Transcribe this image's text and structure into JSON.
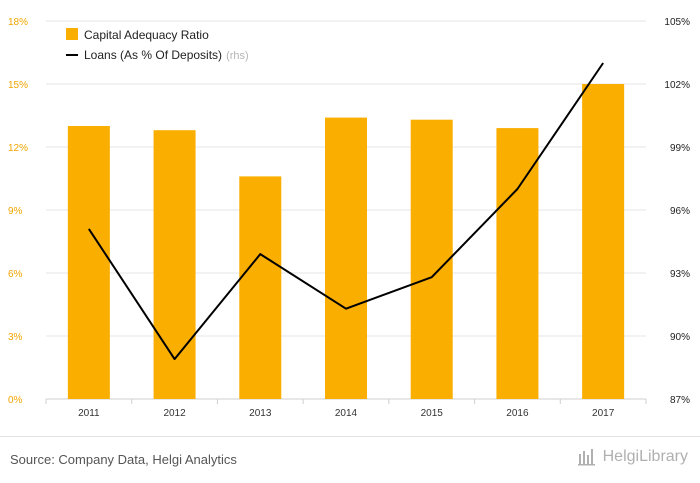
{
  "chart_data": {
    "type": "bar+line",
    "categories": [
      "2011",
      "2012",
      "2013",
      "2014",
      "2015",
      "2016",
      "2017"
    ],
    "series": [
      {
        "name": "Capital Adequacy Ratio",
        "type": "bar",
        "axis": "left",
        "unit": "%",
        "values": [
          13.0,
          12.8,
          10.6,
          13.4,
          13.3,
          12.9,
          15.0
        ]
      },
      {
        "name": "Loans (As % Of Deposits)",
        "legend_suffix": "(rhs)",
        "type": "line",
        "axis": "right",
        "unit": "%",
        "values": [
          95.1,
          88.9,
          93.9,
          91.3,
          92.8,
          97.0,
          103.0
        ]
      }
    ],
    "y_left": {
      "ticks": [
        "0%",
        "3%",
        "6%",
        "9%",
        "12%",
        "15%",
        "18%"
      ],
      "ylim": [
        0,
        18
      ]
    },
    "y_right": {
      "ticks": [
        "87%",
        "90%",
        "93%",
        "96%",
        "99%",
        "102%",
        "105%"
      ],
      "ylim": [
        87,
        105
      ]
    },
    "grid": true,
    "legend_position": "top-left"
  },
  "colors": {
    "bar": "#f9ae00",
    "line": "#000000",
    "left_axis_text": "#f0a500",
    "grid": "#e6e6e6"
  },
  "footer": {
    "source": "Source: Company Data, Helgi Analytics",
    "logo_text": "HelgiLibrary"
  },
  "icons": {
    "logo": "helgi-library-logo-icon"
  }
}
